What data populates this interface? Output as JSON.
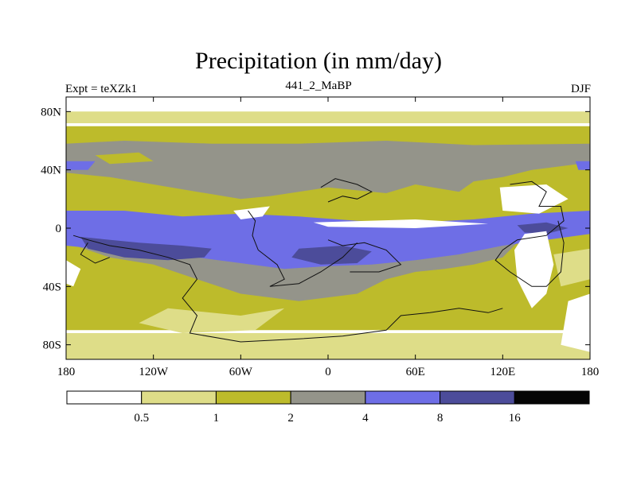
{
  "chart_data": {
    "type": "heatmap",
    "title": "Precipitation (in mm/day)",
    "left_label": "Expt = teXZk1",
    "center_label": "441_2_MaBP",
    "right_label": "DJF",
    "x_ticks": [
      "180",
      "120W",
      "60W",
      "0",
      "60E",
      "120E",
      "180"
    ],
    "y_ticks": [
      "80N",
      "40N",
      "0",
      "40S",
      "80S"
    ],
    "xlim": [
      -180,
      180
    ],
    "ylim": [
      -90,
      90
    ],
    "colorbar": {
      "levels": [
        "0.5",
        "1",
        "2",
        "4",
        "8",
        "16"
      ],
      "colors": [
        "#ffffff",
        "#dedd88",
        "#bdbb2b",
        "#94948a",
        "#6e6ee6",
        "#4c4c9a",
        "#050505"
      ]
    },
    "features": {
      "bands": [
        {
          "level": 2,
          "polygon": [
            [
              -180,
              70
            ],
            [
              180,
              70
            ],
            [
              180,
              -70
            ],
            [
              -180,
              -70
            ]
          ]
        },
        {
          "level": 3,
          "polygon": [
            [
              -180,
              58
            ],
            [
              -140,
              60
            ],
            [
              -80,
              58
            ],
            [
              -20,
              58
            ],
            [
              40,
              60
            ],
            [
              100,
              57
            ],
            [
              180,
              58
            ],
            [
              180,
              45
            ],
            [
              140,
              40
            ],
            [
              120,
              35
            ],
            [
              100,
              32
            ],
            [
              90,
              25
            ],
            [
              60,
              30
            ],
            [
              40,
              24
            ],
            [
              0,
              28
            ],
            [
              -40,
              22
            ],
            [
              -60,
              20
            ],
            [
              -90,
              25
            ],
            [
              -120,
              30
            ],
            [
              -150,
              35
            ],
            [
              -180,
              38
            ]
          ]
        },
        {
          "level": 3,
          "polygon": [
            [
              -180,
              -10
            ],
            [
              -150,
              -20
            ],
            [
              -120,
              -25
            ],
            [
              -90,
              -35
            ],
            [
              -60,
              -45
            ],
            [
              -20,
              -50
            ],
            [
              20,
              -45
            ],
            [
              40,
              -35
            ],
            [
              60,
              -30
            ],
            [
              80,
              -28
            ],
            [
              100,
              -25
            ],
            [
              120,
              -20
            ],
            [
              130,
              -10
            ],
            [
              120,
              -5
            ],
            [
              60,
              0
            ],
            [
              0,
              -3
            ],
            [
              -60,
              0
            ],
            [
              -100,
              -2
            ],
            [
              -140,
              0
            ],
            [
              -180,
              0
            ]
          ]
        },
        {
          "level": 4,
          "polygon": [
            [
              -180,
              12
            ],
            [
              -140,
              12
            ],
            [
              -100,
              8
            ],
            [
              -60,
              10
            ],
            [
              -20,
              8
            ],
            [
              20,
              5
            ],
            [
              60,
              4
            ],
            [
              100,
              6
            ],
            [
              140,
              10
            ],
            [
              180,
              12
            ],
            [
              180,
              -4
            ],
            [
              150,
              -8
            ],
            [
              120,
              -12
            ],
            [
              90,
              -18
            ],
            [
              60,
              -22
            ],
            [
              30,
              -25
            ],
            [
              0,
              -26
            ],
            [
              -30,
              -28
            ],
            [
              -60,
              -24
            ],
            [
              -90,
              -20
            ],
            [
              -120,
              -18
            ],
            [
              -150,
              -15
            ],
            [
              -180,
              -12
            ]
          ]
        },
        {
          "level": 5,
          "polygon": [
            [
              -170,
              -6
            ],
            [
              -130,
              -10
            ],
            [
              -100,
              -12
            ],
            [
              -80,
              -14
            ],
            [
              -85,
              -20
            ],
            [
              -110,
              -22
            ],
            [
              -140,
              -20
            ],
            [
              -165,
              -14
            ]
          ]
        },
        {
          "level": 5,
          "polygon": [
            [
              -20,
              -14
            ],
            [
              10,
              -12
            ],
            [
              30,
              -16
            ],
            [
              20,
              -24
            ],
            [
              -5,
              -25
            ],
            [
              -25,
              -20
            ]
          ]
        },
        {
          "level": 5,
          "polygon": [
            [
              130,
              2
            ],
            [
              150,
              4
            ],
            [
              165,
              0
            ],
            [
              150,
              -4
            ],
            [
              135,
              -3
            ]
          ]
        },
        {
          "level": 4,
          "polygon": [
            [
              -180,
              46
            ],
            [
              -160,
              46
            ],
            [
              -165,
              40
            ],
            [
              -180,
              40
            ]
          ]
        },
        {
          "level": 4,
          "polygon": [
            [
              170,
              46
            ],
            [
              180,
              46
            ],
            [
              180,
              40
            ],
            [
              172,
              40
            ]
          ]
        },
        {
          "level": 1,
          "polygon": [
            [
              -180,
              85
            ],
            [
              180,
              85
            ],
            [
              180,
              72
            ],
            [
              -180,
              72
            ]
          ]
        },
        {
          "level": 0,
          "polygon": [
            [
              -180,
              90
            ],
            [
              180,
              90
            ],
            [
              180,
              80
            ],
            [
              -180,
              80
            ]
          ]
        },
        {
          "level": 1,
          "polygon": [
            [
              -180,
              -72
            ],
            [
              180,
              -72
            ],
            [
              180,
              -90
            ],
            [
              -180,
              -90
            ]
          ]
        },
        {
          "level": 0,
          "polygon": [
            [
              118,
              28
            ],
            [
              150,
              30
            ],
            [
              165,
              20
            ],
            [
              145,
              10
            ],
            [
              120,
              12
            ]
          ]
        },
        {
          "level": 0,
          "polygon": [
            [
              -10,
              4
            ],
            [
              60,
              6
            ],
            [
              110,
              3
            ],
            [
              60,
              0
            ],
            [
              0,
              1
            ]
          ]
        },
        {
          "level": 0,
          "polygon": [
            [
              135,
              -4
            ],
            [
              150,
              -2
            ],
            [
              155,
              -25
            ],
            [
              150,
              -45
            ],
            [
              140,
              -55
            ],
            [
              130,
              -35
            ],
            [
              128,
              -15
            ]
          ]
        },
        {
          "level": 1,
          "polygon": [
            [
              155,
              -18
            ],
            [
              180,
              -14
            ],
            [
              180,
              -35
            ],
            [
              160,
              -40
            ]
          ]
        },
        {
          "level": 0,
          "polygon": [
            [
              165,
              -50
            ],
            [
              180,
              -45
            ],
            [
              180,
              -85
            ],
            [
              160,
              -80
            ]
          ]
        },
        {
          "level": 0,
          "polygon": [
            [
              -180,
              -22
            ],
            [
              -170,
              -28
            ],
            [
              -175,
              -40
            ],
            [
              -180,
              -38
            ]
          ]
        },
        {
          "level": 0,
          "polygon": [
            [
              -65,
              12
            ],
            [
              -40,
              15
            ],
            [
              -45,
              8
            ],
            [
              -60,
              6
            ]
          ]
        },
        {
          "level": 1,
          "polygon": [
            [
              -110,
              -55
            ],
            [
              -60,
              -60
            ],
            [
              -30,
              -55
            ],
            [
              -50,
              -70
            ],
            [
              -100,
              -72
            ],
            [
              -130,
              -65
            ]
          ]
        },
        {
          "level": 2,
          "polygon": [
            [
              -160,
              50
            ],
            [
              -130,
              52
            ],
            [
              -120,
              46
            ],
            [
              -150,
              44
            ]
          ]
        }
      ],
      "coast_lines": [
        [
          [
            -175,
            -5
          ],
          [
            -165,
            -8
          ],
          [
            -150,
            -12
          ],
          [
            -130,
            -15
          ],
          [
            -110,
            -20
          ],
          [
            -95,
            -25
          ],
          [
            -90,
            -35
          ],
          [
            -100,
            -48
          ],
          [
            -90,
            -60
          ],
          [
            -95,
            -72
          ],
          [
            -60,
            -78
          ],
          [
            -20,
            -76
          ],
          [
            10,
            -74
          ],
          [
            40,
            -70
          ],
          [
            50,
            -60
          ],
          [
            70,
            -58
          ],
          [
            90,
            -55
          ],
          [
            110,
            -58
          ],
          [
            120,
            -55
          ]
        ],
        [
          [
            -55,
            12
          ],
          [
            -50,
            5
          ],
          [
            -52,
            -5
          ],
          [
            -48,
            -15
          ],
          [
            -35,
            -25
          ],
          [
            -30,
            -35
          ],
          [
            -40,
            -40
          ],
          [
            -20,
            -38
          ],
          [
            -5,
            -30
          ],
          [
            10,
            -20
          ],
          [
            20,
            -10
          ]
        ],
        [
          [
            0,
            -8
          ],
          [
            10,
            -12
          ],
          [
            25,
            -10
          ],
          [
            40,
            -15
          ],
          [
            50,
            -25
          ],
          [
            35,
            -30
          ],
          [
            15,
            -30
          ]
        ],
        [
          [
            -5,
            28
          ],
          [
            5,
            34
          ],
          [
            20,
            30
          ],
          [
            30,
            25
          ],
          [
            20,
            20
          ],
          [
            10,
            22
          ],
          [
            0,
            18
          ]
        ],
        [
          [
            125,
            30
          ],
          [
            140,
            32
          ],
          [
            150,
            25
          ],
          [
            145,
            15
          ],
          [
            160,
            15
          ],
          [
            162,
            5
          ],
          [
            150,
            -5
          ],
          [
            130,
            -8
          ],
          [
            120,
            -15
          ],
          [
            115,
            -22
          ],
          [
            125,
            -30
          ],
          [
            140,
            -40
          ],
          [
            150,
            -40
          ],
          [
            160,
            -30
          ],
          [
            162,
            -10
          ],
          [
            158,
            5
          ]
        ],
        [
          [
            -165,
            -10
          ],
          [
            -170,
            -18
          ],
          [
            -160,
            -24
          ],
          [
            -150,
            -20
          ]
        ]
      ]
    }
  }
}
